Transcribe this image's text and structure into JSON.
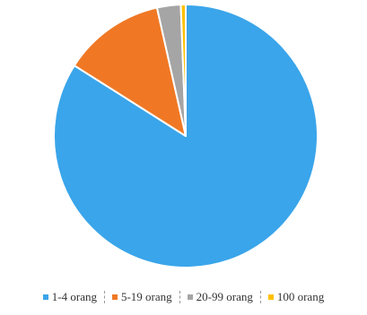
{
  "chart_data": {
    "type": "pie",
    "title": "",
    "legend_position": "bottom",
    "slices": [
      {
        "label": "1-4 orang",
        "value": 84.0,
        "color": "#3aa5ea"
      },
      {
        "label": "5-19 orang",
        "value": 12.5,
        "color": "#f07824"
      },
      {
        "label": "20-99 orang",
        "value": 2.9,
        "color": "#a5a5a5"
      },
      {
        "label": "100 orang",
        "value": 0.6,
        "color": "#ffc000"
      }
    ]
  }
}
